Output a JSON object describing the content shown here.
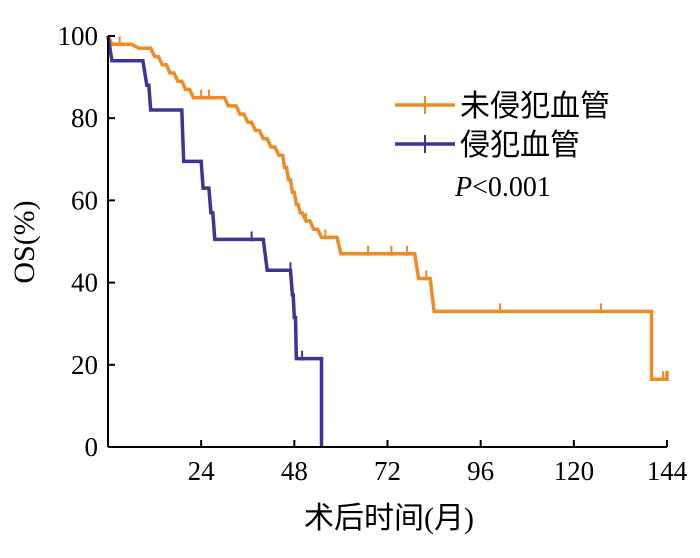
{
  "chart_data": {
    "type": "line",
    "title": "",
    "xlabel": "术后时间(月)",
    "ylabel": "OS(%)",
    "xlim": [
      0,
      144
    ],
    "ylim": [
      0,
      100
    ],
    "x_ticks": [
      24,
      48,
      72,
      96,
      120,
      144
    ],
    "y_ticks": [
      0,
      20,
      40,
      60,
      80,
      100
    ],
    "grid": false,
    "legend_position": "top-right",
    "annotation": {
      "italic": "P",
      "rest": "<0.001"
    },
    "series": [
      {
        "name": "未侵犯血管",
        "color": "#F08A24",
        "steps": [
          [
            0,
            100
          ],
          [
            1,
            98
          ],
          [
            6,
            98
          ],
          [
            8,
            97
          ],
          [
            11,
            97
          ],
          [
            12,
            95
          ],
          [
            13,
            95
          ],
          [
            14,
            93
          ],
          [
            15,
            93
          ],
          [
            16,
            91
          ],
          [
            17,
            91
          ],
          [
            18,
            89
          ],
          [
            19,
            89
          ],
          [
            20,
            87
          ],
          [
            21,
            87
          ],
          [
            22,
            85
          ],
          [
            30,
            85
          ],
          [
            31,
            83
          ],
          [
            33,
            83
          ],
          [
            34,
            81
          ],
          [
            35,
            81
          ],
          [
            36,
            79
          ],
          [
            37,
            79
          ],
          [
            38,
            77
          ],
          [
            39,
            77
          ],
          [
            40,
            75
          ],
          [
            41,
            75
          ],
          [
            42,
            73
          ],
          [
            43,
            73
          ],
          [
            44,
            71
          ],
          [
            45,
            71
          ],
          [
            45.5,
            68
          ],
          [
            46,
            68
          ],
          [
            46.5,
            65
          ],
          [
            47,
            65
          ],
          [
            47.5,
            62
          ],
          [
            48,
            62
          ],
          [
            48.5,
            59
          ],
          [
            49,
            59
          ],
          [
            49.5,
            57
          ],
          [
            50,
            57
          ],
          [
            51,
            55
          ],
          [
            52,
            55
          ],
          [
            53,
            53
          ],
          [
            54,
            53
          ],
          [
            55,
            51
          ],
          [
            59,
            51
          ],
          [
            60,
            47
          ],
          [
            79,
            47
          ],
          [
            80,
            41
          ],
          [
            83,
            41
          ],
          [
            84,
            33
          ],
          [
            140,
            33
          ],
          [
            140,
            16.5
          ],
          [
            144,
            16.5
          ],
          [
            144,
            18.5
          ]
        ],
        "censors": [
          [
            3,
            98
          ],
          [
            24,
            85
          ],
          [
            26,
            85
          ],
          [
            51,
            55
          ],
          [
            56,
            51
          ],
          [
            67,
            47
          ],
          [
            73,
            47
          ],
          [
            77,
            47
          ],
          [
            82,
            41
          ],
          [
            101,
            33
          ],
          [
            127,
            33
          ],
          [
            143,
            16.5
          ]
        ]
      },
      {
        "name": "侵犯血管",
        "color": "#3B3598",
        "steps": [
          [
            0,
            100
          ],
          [
            1,
            94
          ],
          [
            9,
            94
          ],
          [
            10,
            88
          ],
          [
            10.5,
            88
          ],
          [
            11,
            82
          ],
          [
            19,
            82
          ],
          [
            19.5,
            69.5
          ],
          [
            24,
            69.5
          ],
          [
            24.5,
            63
          ],
          [
            26,
            63
          ],
          [
            26.5,
            57
          ],
          [
            27,
            57
          ],
          [
            27.5,
            50.5
          ],
          [
            40,
            50.5
          ],
          [
            41,
            43
          ],
          [
            47,
            43
          ],
          [
            47.5,
            37
          ],
          [
            47.7,
            37
          ],
          [
            48,
            31.5
          ],
          [
            48.3,
            31.5
          ],
          [
            48.5,
            21.5
          ],
          [
            55,
            21.5
          ],
          [
            55,
            0
          ]
        ],
        "censors": [
          [
            37,
            50.5
          ],
          [
            47,
            43
          ],
          [
            50,
            21.5
          ]
        ]
      }
    ]
  }
}
